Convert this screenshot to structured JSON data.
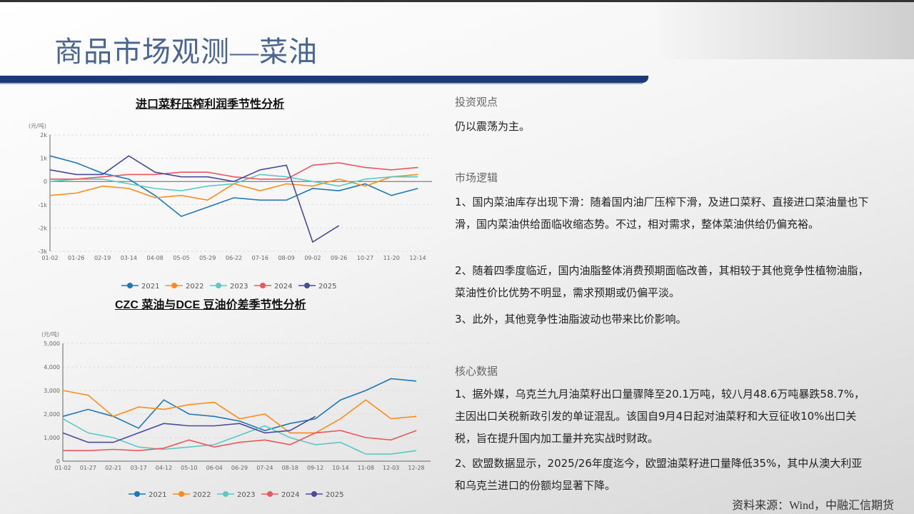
{
  "header": {
    "title": "商品市场观测—菜油"
  },
  "colors": {
    "2021": "#1f77b4",
    "2022": "#ff8c1a",
    "2023": "#5cc8c4",
    "2024": "#e8585c",
    "2025": "#4a4a9a",
    "band": "#1c3b75"
  },
  "chart_data": [
    {
      "type": "line",
      "title": "进口菜籽压榨利润季节性分析",
      "unit": "(元/吨)",
      "categories": [
        "01-02",
        "01-26",
        "02-19",
        "03-14",
        "04-08",
        "05-05",
        "05-29",
        "06-22",
        "07-16",
        "08-09",
        "09-02",
        "09-26",
        "10-27",
        "11-20",
        "12-14"
      ],
      "yticks": [
        "2k",
        "1k",
        "0",
        "-1k",
        "-2k",
        "-3k"
      ],
      "ylim": [
        -3000,
        2000
      ],
      "series": [
        {
          "name": "2021",
          "values": [
            1100,
            800,
            350,
            100,
            -600,
            -1500,
            -1100,
            -700,
            -800,
            -800,
            -300,
            -400,
            -100,
            -600,
            -300
          ]
        },
        {
          "name": "2022",
          "values": [
            -600,
            -500,
            -200,
            -300,
            -700,
            -600,
            -800,
            -100,
            -400,
            -100,
            -200,
            100,
            -200,
            200,
            300
          ]
        },
        {
          "name": "2023",
          "values": [
            0,
            100,
            100,
            -100,
            -300,
            -400,
            -200,
            -100,
            300,
            200,
            0,
            -200,
            100,
            200,
            200
          ]
        },
        {
          "name": "2024",
          "values": [
            100,
            100,
            200,
            300,
            300,
            400,
            400,
            200,
            100,
            100,
            700,
            800,
            600,
            500,
            600
          ]
        },
        {
          "name": "2025",
          "values": [
            500,
            300,
            300,
            1100,
            400,
            200,
            200,
            0,
            500,
            700,
            -2600,
            -1900,
            null,
            null,
            null
          ]
        }
      ],
      "legend": "bottom"
    },
    {
      "type": "line",
      "title": "CZC 菜油与DCE 豆油价差季节性分析",
      "unit": "(元/吨)",
      "categories": [
        "01-02",
        "01-27",
        "02-21",
        "03-17",
        "04-12",
        "05-10",
        "06-04",
        "06-29",
        "07-24",
        "08-18",
        "09-12",
        "10-14",
        "11-08",
        "12-03",
        "12-28"
      ],
      "yticks": [
        "5,000",
        "4,000",
        "3,000",
        "2,000",
        "1,000",
        "0"
      ],
      "ylim": [
        0,
        5000
      ],
      "series": [
        {
          "name": "2021",
          "values": [
            1900,
            2200,
            1900,
            1400,
            2600,
            2000,
            1900,
            1700,
            1300,
            1600,
            1800,
            2600,
            3000,
            3500,
            3400
          ]
        },
        {
          "name": "2022",
          "values": [
            3000,
            2800,
            1900,
            2300,
            2200,
            2400,
            2500,
            1800,
            2000,
            1200,
            1200,
            1800,
            2600,
            1800,
            1900
          ]
        },
        {
          "name": "2023",
          "values": [
            1800,
            1200,
            1000,
            600,
            500,
            600,
            700,
            1100,
            1500,
            1000,
            700,
            800,
            300,
            300,
            450
          ]
        },
        {
          "name": "2024",
          "values": [
            450,
            450,
            500,
            450,
            550,
            900,
            600,
            800,
            900,
            700,
            1200,
            1300,
            1000,
            900,
            1300
          ]
        },
        {
          "name": "2025",
          "values": [
            1200,
            800,
            800,
            1200,
            1600,
            1500,
            1500,
            1600,
            1200,
            1300,
            1900,
            null,
            null,
            null,
            null
          ]
        }
      ],
      "legend": "bottom"
    }
  ],
  "right": {
    "s1": "投资观点",
    "s1p": "仍以震荡为主。",
    "s2": "市场逻辑",
    "s2p1": "1、国内菜油库存出现下滑：随着国内油厂压榨下滑，及进口菜籽、直接进口菜油量也下滑，国内菜油供给面临收缩态势。不过，相对需求，整体菜油供给仍偏充裕。",
    "s2p2": "2、随着四季度临近，国内油脂整体消费预期面临改善，其相较于其他竞争性植物油脂，菜油性价比优势不明显，需求预期或仍偏平淡。",
    "s2p3": "3、此外，其他竞争性油脂波动也带来比价影响。",
    "s3": "核心数据",
    "s3p1": "1、据外媒，乌克兰九月油菜籽出口量骤降至20.1万吨，较八月48.6万吨暴跌58.7%，主因出口关税新政引发的单证混乱。该国自9月4日起对油菜籽和大豆征收10%出口关税，旨在提升国内加工量并充实战时财政。",
    "s3p2": "2、欧盟数据显示，2025/26年度迄今，欧盟油菜籽进口量降低35%，其中从澳大利亚和乌克兰进口的份额均显著下降。"
  },
  "source": "资料来源：Wind，中融汇信期货"
}
